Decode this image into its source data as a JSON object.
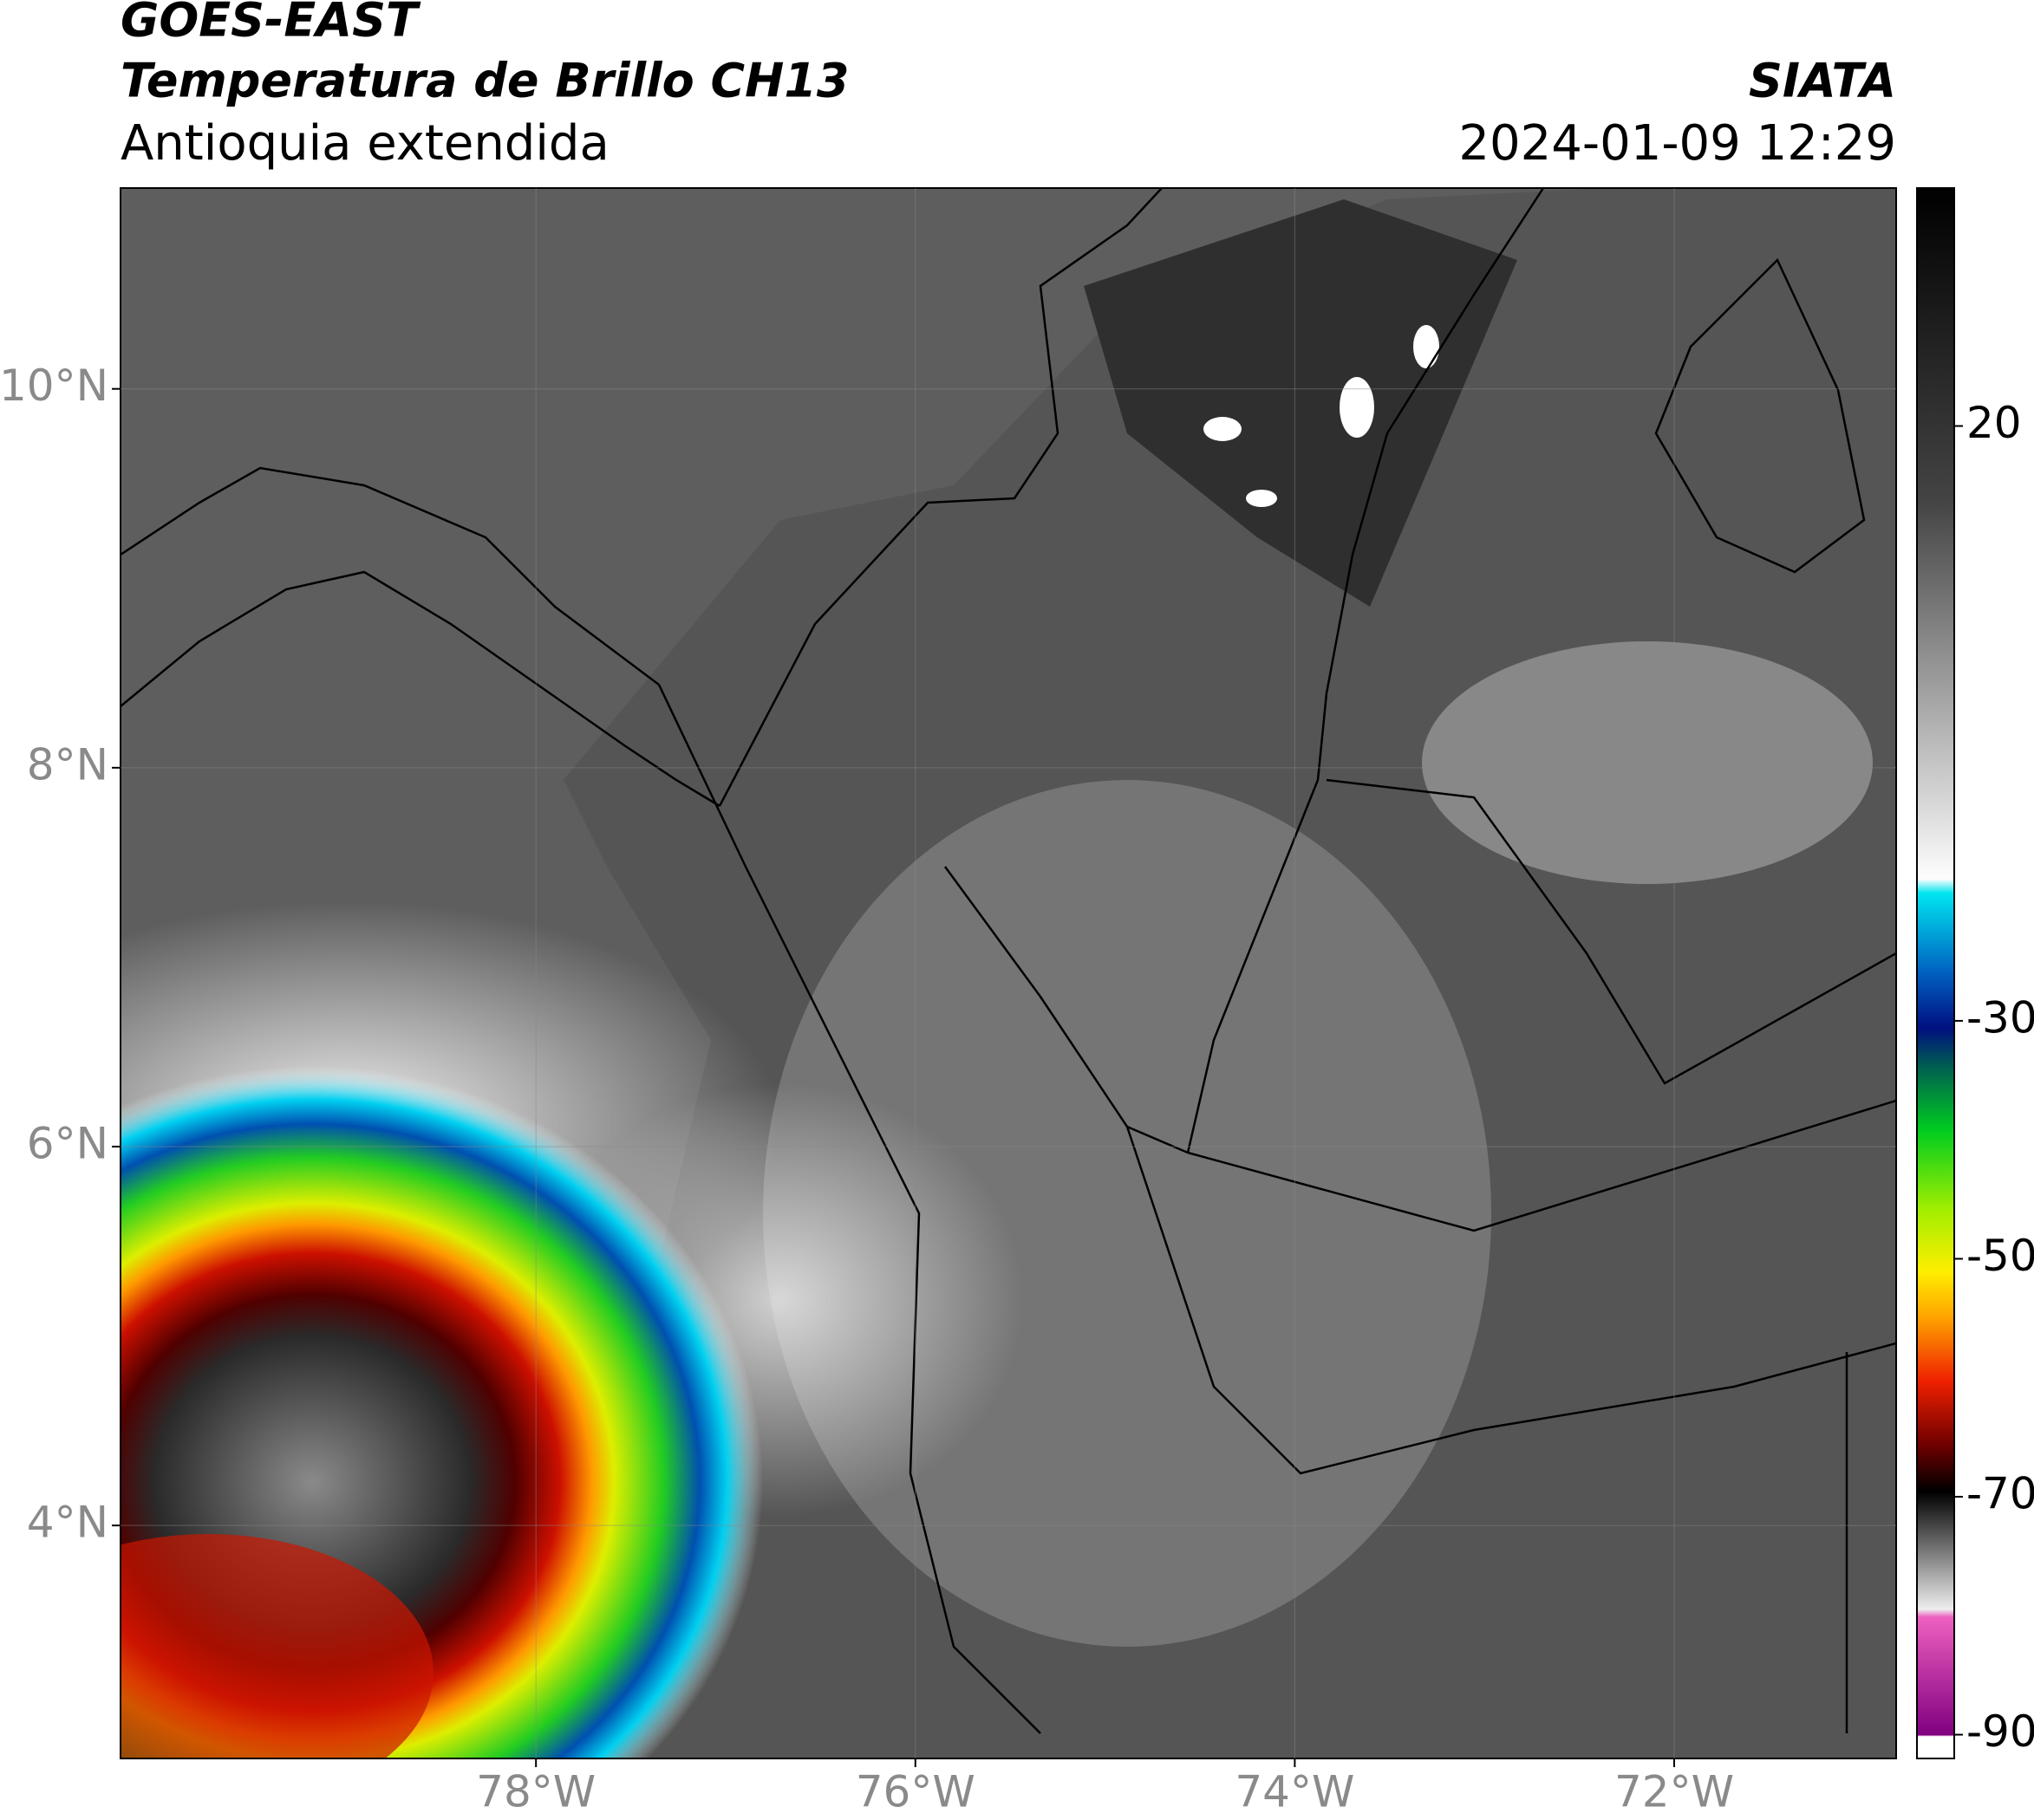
{
  "header": {
    "satellite": "GOES-EAST",
    "product": "Temperatura de Brillo CH13",
    "region": "Antioquia extendida",
    "source": "SIATA",
    "datetime": "2024-01-09 12:29"
  },
  "map": {
    "lon_lim": [
      -80.19,
      -70.83
    ],
    "lat_lim": [
      2.77,
      11.06
    ],
    "lon_ticks": [
      {
        "value": -78,
        "label": "78°W"
      },
      {
        "value": -76,
        "label": "76°W"
      },
      {
        "value": -74,
        "label": "74°W"
      },
      {
        "value": -72,
        "label": "72°W"
      }
    ],
    "lat_ticks": [
      {
        "value": 10,
        "label": "10°N"
      },
      {
        "value": 8,
        "label": "8°N"
      },
      {
        "value": 6,
        "label": "6°N"
      },
      {
        "value": 4,
        "label": "4°N"
      }
    ],
    "grid": true
  },
  "colorbar": {
    "lim": [
      -92,
      40
    ],
    "ticks": [
      20,
      -30,
      -50,
      -70,
      -90
    ]
  }
}
